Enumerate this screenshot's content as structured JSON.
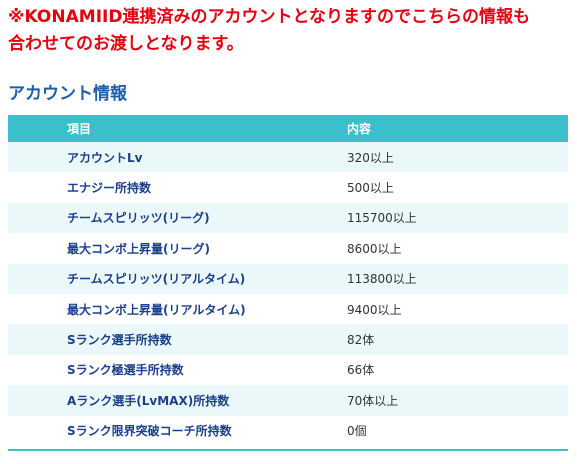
{
  "notice": {
    "line1": "※KONAMIID連携済みのアカウントとなりますのでこちらの情報も",
    "line2": "合わせてのお渡しとなります。"
  },
  "section": {
    "title": "アカウント情報"
  },
  "table": {
    "headers": [
      "項目",
      "内容"
    ],
    "rows": [
      {
        "name": "アカウントLv",
        "value": "320以上"
      },
      {
        "name": "エナジー所持数",
        "value": "500以上"
      },
      {
        "name": "チームスピリッツ(リーグ)",
        "value": "115700以上"
      },
      {
        "name": "最大コンボ上昇量(リーグ)",
        "value": "8600以上"
      },
      {
        "name": "チームスピリッツ(リアルタイム)",
        "value": "113800以上"
      },
      {
        "name": "最大コンボ上昇量(リアルタイム)",
        "value": "9400以上"
      },
      {
        "name": "Sランク選手所持数",
        "value": "82体"
      },
      {
        "name": "Sランク極選手所持数",
        "value": "66体"
      },
      {
        "name": "Aランク選手(LvMAX)所持数",
        "value": "70体以上"
      },
      {
        "name": "Sランク限界突破コーチ所持数",
        "value": "0個"
      }
    ]
  },
  "colors": {
    "notice": "#e60012",
    "title": "#1e5fa8",
    "header_bg": "#3bbfcb",
    "row_alt_bg": "#eaf8f9",
    "item_text": "#1c3f8c"
  }
}
